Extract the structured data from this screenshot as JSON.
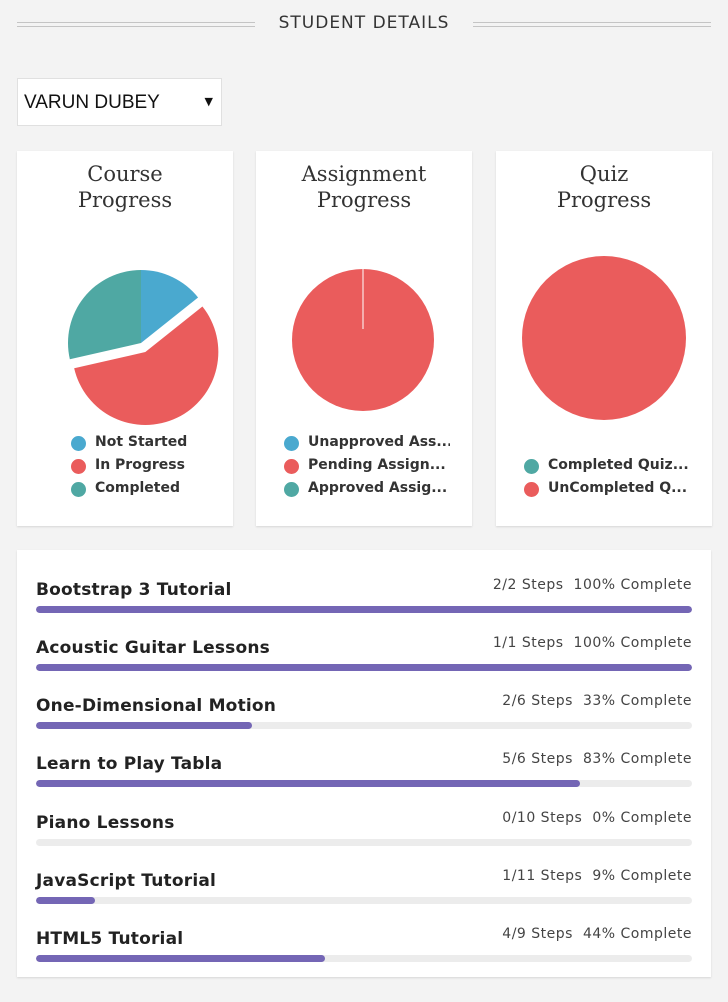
{
  "header": {
    "title": "STUDENT DETAILS"
  },
  "student_select": {
    "value": "VARUN DUBEY"
  },
  "colors": {
    "blue": "#4aa9cf",
    "red": "#ea5c5c",
    "teal": "#4fa8a3",
    "bar": "#7466b5"
  },
  "cards": [
    {
      "title_line1": "Course",
      "title_line2": "Progress",
      "legend": [
        {
          "label": "Not Started",
          "color": "#4aa9cf"
        },
        {
          "label": "In Progress",
          "color": "#ea5c5c"
        },
        {
          "label": "Completed",
          "color": "#4fa8a3"
        }
      ]
    },
    {
      "title_line1": "Assignment",
      "title_line2": "Progress",
      "legend": [
        {
          "label": "Unapproved Ass...",
          "color": "#4aa9cf"
        },
        {
          "label": "Pending Assign...",
          "color": "#ea5c5c"
        },
        {
          "label": "Approved Assig...",
          "color": "#4fa8a3"
        }
      ]
    },
    {
      "title_line1": "Quiz",
      "title_line2": "Progress",
      "legend": [
        {
          "label": "Completed Quiz...",
          "color": "#4fa8a3"
        },
        {
          "label": "UnCompleted Q...",
          "color": "#ea5c5c"
        }
      ]
    }
  ],
  "chart_data": [
    {
      "type": "pie",
      "title": "Course Progress",
      "series": [
        {
          "values": [
            1,
            4,
            2
          ]
        }
      ],
      "categories": [
        "Not Started",
        "In Progress",
        "Completed"
      ]
    },
    {
      "type": "pie",
      "title": "Assignment Progress",
      "series": [
        {
          "values": [
            0,
            1,
            0
          ]
        }
      ],
      "categories": [
        "Unapproved Ass...",
        "Pending Assign...",
        "Approved Assig..."
      ]
    },
    {
      "type": "pie",
      "title": "Quiz Progress",
      "series": [
        {
          "values": [
            0,
            1
          ]
        }
      ],
      "categories": [
        "Completed Quiz...",
        "UnCompleted Q..."
      ]
    }
  ],
  "courses": [
    {
      "name": "Bootstrap 3 Tutorial",
      "steps": "2/2 Steps",
      "complete": "100% Complete",
      "progress": 1.0
    },
    {
      "name": "Acoustic Guitar Lessons",
      "steps": "1/1 Steps",
      "complete": "100% Complete",
      "progress": 1.0
    },
    {
      "name": "One-Dimensional Motion",
      "steps": "2/6 Steps",
      "complete": "33% Complete",
      "progress": 0.33
    },
    {
      "name": "Learn to Play Tabla",
      "steps": "5/6 Steps",
      "complete": "83% Complete",
      "progress": 0.83
    },
    {
      "name": "Piano Lessons",
      "steps": "0/10 Steps",
      "complete": "0% Complete",
      "progress": 0.0
    },
    {
      "name": "JavaScript Tutorial",
      "steps": "1/11 Steps",
      "complete": "9% Complete",
      "progress": 0.09
    },
    {
      "name": "HTML5 Tutorial",
      "steps": "4/9 Steps",
      "complete": "44% Complete",
      "progress": 0.44
    }
  ]
}
